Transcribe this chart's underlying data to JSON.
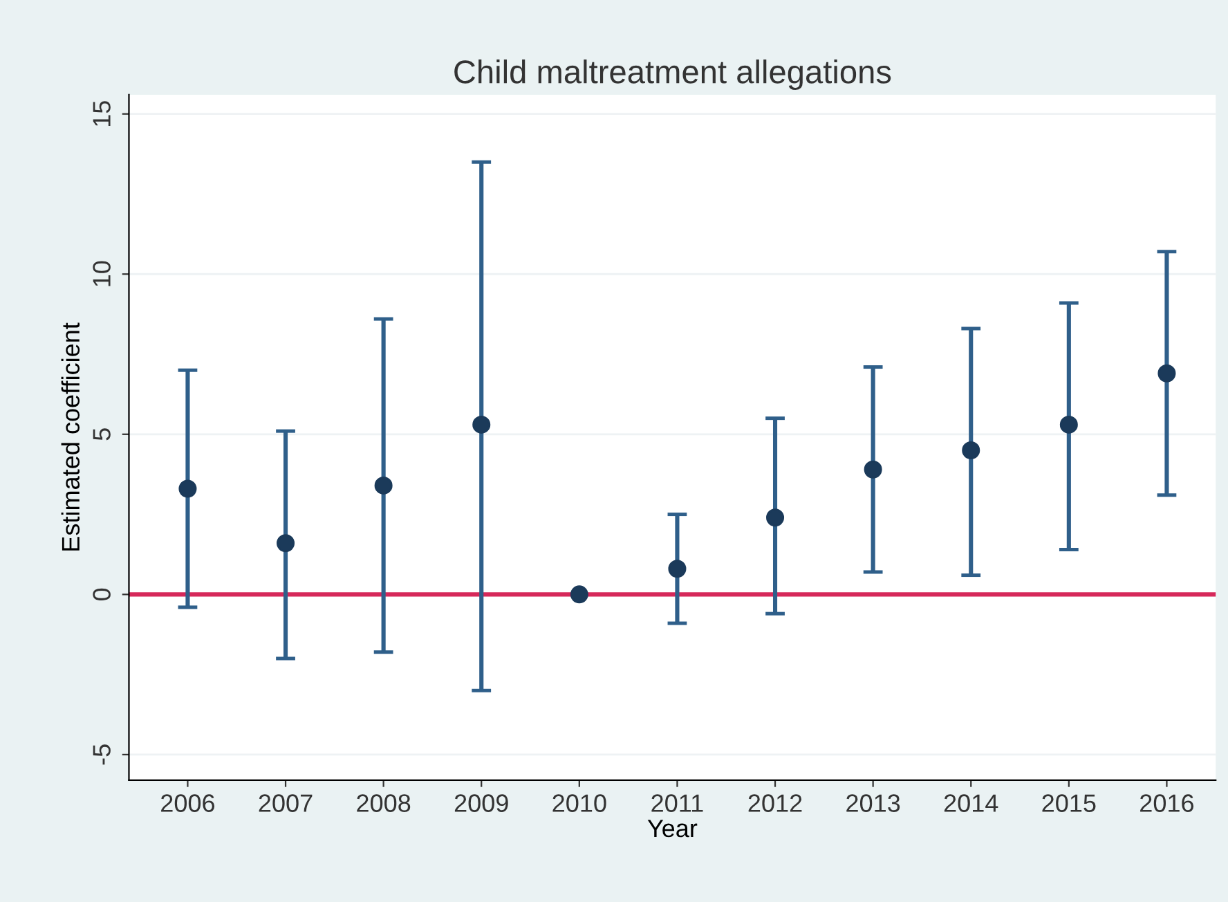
{
  "chart_data": {
    "type": "scatter",
    "title": "Child maltreatment allegations",
    "xlabel": "Year",
    "ylabel": "Estimated coefficient",
    "categories": [
      "2006",
      "2007",
      "2008",
      "2009",
      "2010",
      "2011",
      "2012",
      "2013",
      "2014",
      "2015",
      "2016"
    ],
    "values": [
      3.3,
      1.6,
      3.4,
      5.3,
      0,
      0.8,
      2.4,
      3.9,
      4.5,
      5.3,
      6.9
    ],
    "errors": [
      [
        -0.4,
        7.0
      ],
      [
        -2.0,
        5.1
      ],
      [
        -1.8,
        8.6
      ],
      [
        -3.0,
        13.5
      ],
      null,
      [
        -0.9,
        2.5
      ],
      [
        -0.6,
        5.5
      ],
      [
        0.7,
        7.1
      ],
      [
        0.6,
        8.3
      ],
      [
        1.4,
        9.1
      ],
      [
        3.1,
        10.7
      ]
    ],
    "color": "#1b3a5a",
    "ylim": [
      -5.8,
      15.6
    ],
    "yticks": [
      -5,
      0,
      5,
      10,
      15
    ],
    "grid": "y",
    "marker": "circle",
    "ref_lines": [
      {
        "axis": "y",
        "value": 0,
        "color": "#d6285a"
      }
    ]
  }
}
